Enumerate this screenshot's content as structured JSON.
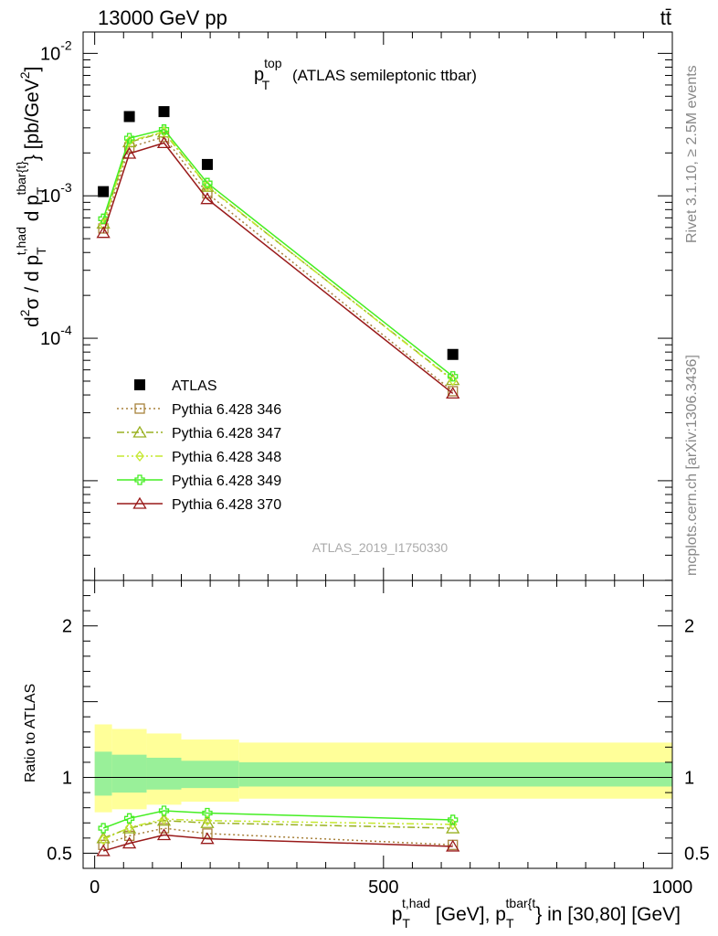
{
  "header": {
    "left": "13000 GeV pp",
    "right": "tt̄"
  },
  "side_labels": {
    "rivet": "Rivet 3.1.10, ≥ 2.5M events",
    "mcplots": "mcplots.cern.ch [arXiv:1306.3436]"
  },
  "chart_data": [
    {
      "type": "scatter",
      "title_main": "p",
      "title_sup": "top",
      "title_sub": "T",
      "title_rest": "(ATLAS semileptonic ttbar)",
      "watermark": "ATLAS_2019_I1750330",
      "ylabel": "d²σ / d p_T^{t,had} d p_T^{tbar{t}} [pb/GeV²]",
      "ylabel_parts": {
        "d2": "d",
        "sup2": "2",
        "sigma": "σ / d p",
        "sub_T1": "T",
        "sup_had": "t,had",
        "dp2": " d p",
        "sub_T2": "T",
        "sup_tbar": "tbar{t}",
        "unit": "} [pb/GeV",
        "unit_sup": "2",
        "unit_end": "]"
      },
      "yscale": "log",
      "xlim": [
        -20,
        1000
      ],
      "ylim_log10": [
        -5.7,
        -1.85
      ],
      "ytick_labels": [
        {
          "exp": "-2",
          "value": 0.01
        },
        {
          "exp": "-3",
          "value": 0.001
        },
        {
          "exp": "-4",
          "value": 0.0001
        }
      ],
      "ytick_base": "10",
      "legend_position": "middle-left",
      "x": [
        15,
        60,
        120,
        195,
        620
      ],
      "series": [
        {
          "name": "ATLAS",
          "color": "#000000",
          "marker": "square",
          "style": "none",
          "values": [
            0.00107,
            0.0036,
            0.0039,
            0.00166,
            7.7e-05
          ]
        },
        {
          "name": "Pythia 6.428 346",
          "color": "#a8823c",
          "marker": "open-square",
          "style": "dotted",
          "values": [
            0.00059,
            0.00219,
            0.00259,
            0.00104,
            4.25e-05
          ]
        },
        {
          "name": "Pythia 6.428 347",
          "color": "#99b020",
          "marker": "open-triangle",
          "style": "dashdot",
          "values": [
            0.00064,
            0.00238,
            0.00279,
            0.00116,
            5.1e-05
          ]
        },
        {
          "name": "Pythia 6.428 348",
          "color": "#c5e830",
          "marker": "open-diamond",
          "style": "dashdotdot",
          "values": [
            0.00063,
            0.00242,
            0.00282,
            0.00117,
            5.05e-05
          ]
        },
        {
          "name": "Pythia 6.428 349",
          "color": "#44ee22",
          "marker": "open-cross",
          "style": "solid",
          "values": [
            0.00069,
            0.00254,
            0.00292,
            0.00123,
            5.4e-05
          ]
        },
        {
          "name": "Pythia 6.428 370",
          "color": "#991a1a",
          "marker": "open-triangle",
          "style": "solid",
          "values": [
            0.00055,
            0.00198,
            0.00235,
            0.00095,
            4.1e-05
          ]
        }
      ]
    },
    {
      "type": "line",
      "ylabel": "Ratio to ATLAS",
      "xlabel_parts": {
        "p1": "p",
        "sub1": "T",
        "sup1": "t,had",
        "mid": " [GeV], p",
        "sub2": "T",
        "sup2": "tbar{t",
        "end": "} in [30,80] [GeV]"
      },
      "xlim": [
        -20,
        1000
      ],
      "ylim": [
        0.4,
        2.3
      ],
      "xtick_labels": [
        "0",
        "500",
        "1000"
      ],
      "xtick_values": [
        0,
        500,
        1000
      ],
      "ytick_labels": [
        "0.5",
        "1",
        "2"
      ],
      "ytick_values": [
        0.5,
        1,
        2
      ],
      "bin_edges": [
        0,
        30,
        90,
        150,
        250,
        1000
      ],
      "band_outer": [
        [
          0.77,
          1.35
        ],
        [
          0.79,
          1.32
        ],
        [
          0.82,
          1.29
        ],
        [
          0.84,
          1.25
        ],
        [
          0.86,
          1.23
        ]
      ],
      "band_inner": [
        [
          0.88,
          1.17
        ],
        [
          0.9,
          1.15
        ],
        [
          0.92,
          1.13
        ],
        [
          0.93,
          1.11
        ],
        [
          0.94,
          1.1
        ]
      ],
      "x": [
        15,
        60,
        120,
        195,
        620
      ],
      "series": [
        {
          "name": "Pythia 6.428 346",
          "color": "#a8823c",
          "marker": "open-square",
          "style": "dotted",
          "values": [
            0.555,
            0.615,
            0.665,
            0.63,
            0.555
          ]
        },
        {
          "name": "Pythia 6.428 347",
          "color": "#99b020",
          "marker": "open-triangle",
          "style": "dashdot",
          "values": [
            0.6,
            0.665,
            0.715,
            0.7,
            0.665
          ]
        },
        {
          "name": "Pythia 6.428 348",
          "color": "#c5e830",
          "marker": "open-diamond",
          "style": "dashdotdot",
          "values": [
            0.59,
            0.67,
            0.725,
            0.715,
            0.69
          ]
        },
        {
          "name": "Pythia 6.428 349",
          "color": "#44ee22",
          "marker": "open-cross",
          "style": "solid",
          "values": [
            0.665,
            0.73,
            0.78,
            0.765,
            0.72
          ]
        },
        {
          "name": "Pythia 6.428 370",
          "color": "#991a1a",
          "marker": "open-triangle",
          "style": "solid",
          "values": [
            0.515,
            0.565,
            0.62,
            0.595,
            0.545
          ]
        }
      ]
    }
  ]
}
